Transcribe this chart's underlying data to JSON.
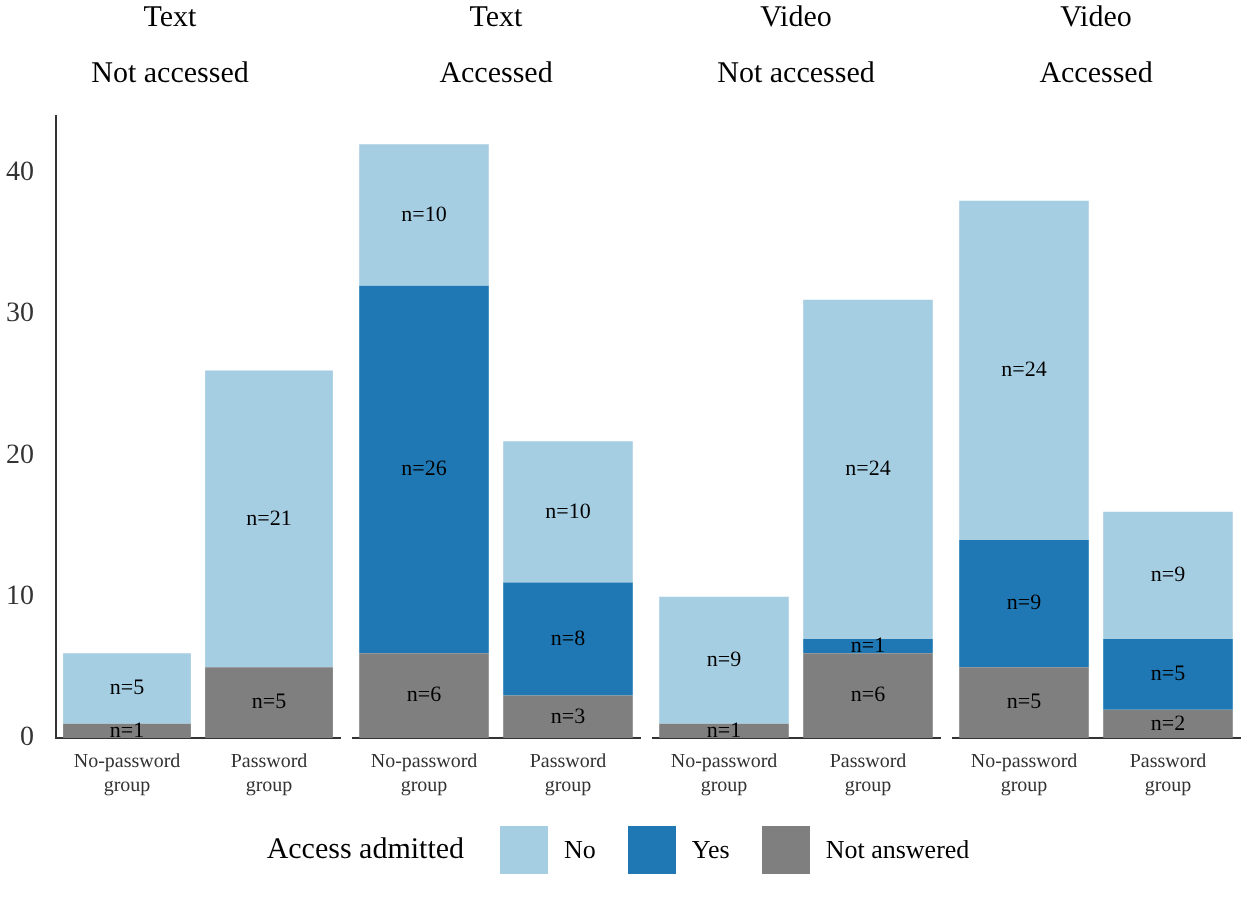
{
  "chart_data": [
    {
      "type": "bar",
      "title": "Text",
      "subtitle": "Not accessed",
      "categories": [
        "No-password group",
        "Password group"
      ],
      "stacked": true,
      "ylim": [
        0,
        44
      ],
      "yticks": [
        0,
        10,
        20,
        30,
        40
      ],
      "grid": false,
      "legend": "bottom",
      "legend_title": "Access admitted",
      "series": [
        {
          "name": "Not answered",
          "color": "#7f7f7f",
          "values": [
            1,
            5
          ],
          "value_labels": [
            "n=1",
            "n=5"
          ]
        },
        {
          "name": "Yes",
          "color": "#1f78b4",
          "values": [
            0,
            0
          ],
          "value_labels": [
            null,
            null
          ]
        },
        {
          "name": "No",
          "color": "#a6cee3",
          "values": [
            5,
            21
          ],
          "value_labels": [
            "n=5",
            "n=21"
          ]
        }
      ]
    },
    {
      "type": "bar",
      "title": "Text",
      "subtitle": "Accessed",
      "categories": [
        "No-password group",
        "Password group"
      ],
      "stacked": true,
      "tick_labels": "x",
      "grid": false,
      "series": [
        {
          "color": "#7f7f7f",
          "values": [
            6,
            3
          ],
          "value_labels": [
            "n=6",
            "n=3"
          ]
        },
        {
          "color": "#1f78b4",
          "values": [
            26,
            8
          ],
          "value_labels": [
            "n=26",
            "n=8"
          ]
        },
        {
          "color": "#a6cee3",
          "values": [
            10,
            10
          ],
          "value_labels": [
            "n=10",
            "n=10"
          ]
        }
      ]
    },
    {
      "type": "bar",
      "title": "Video",
      "subtitle": "Not accessed",
      "categories": [
        "No-password group",
        "Password group"
      ],
      "stacked": true,
      "tick_labels": "x",
      "grid": false,
      "series": [
        {
          "color": "#7f7f7f",
          "values": [
            1,
            6
          ],
          "value_labels": [
            "n=1",
            "n=6"
          ]
        },
        {
          "color": "#1f78b4",
          "values": [
            0,
            1
          ],
          "value_labels": [
            null,
            "n=1"
          ]
        },
        {
          "color": "#a6cee3",
          "values": [
            9,
            24
          ],
          "value_labels": [
            "n=9",
            "n=24"
          ]
        }
      ]
    },
    {
      "type": "bar",
      "title": "Video",
      "subtitle": "Accessed",
      "categories": [
        "No-password group",
        "Password group"
      ],
      "stacked": true,
      "tick_labels": "x",
      "grid": false,
      "series": [
        {
          "color": "#7f7f7f",
          "values": [
            5,
            2
          ],
          "value_labels": [
            "n=5",
            "n=2"
          ]
        },
        {
          "color": "#1f78b4",
          "values": [
            9,
            5
          ],
          "value_labels": [
            "n=9",
            "n=5"
          ]
        },
        {
          "color": "#a6cee3",
          "values": [
            24,
            9
          ],
          "value_labels": [
            "n=24",
            "n=9"
          ]
        }
      ]
    }
  ]
}
